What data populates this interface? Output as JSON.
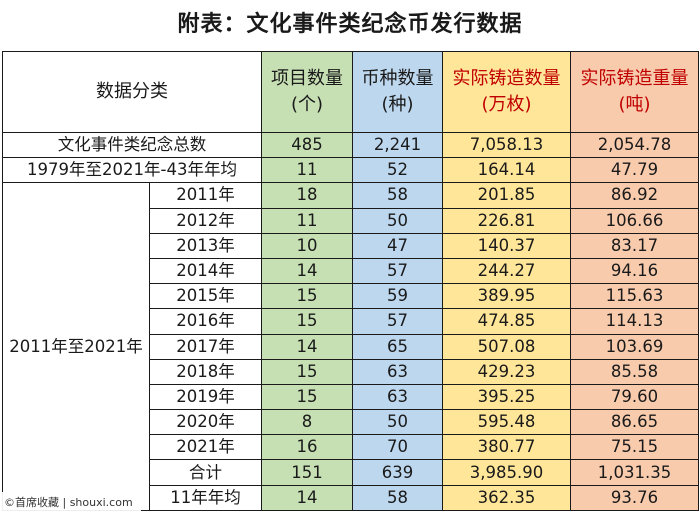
{
  "title": "附表：文化事件类纪念币发行数据",
  "header": {
    "category": "数据分类",
    "items_line1": "项目数量",
    "items_line2": "(个)",
    "types_line1": "币种数量",
    "types_line2": "(种)",
    "mint_count_line1": "实际铸造数量",
    "mint_count_line2": "(万枚)",
    "mint_weight_line1": "实际铸造重量",
    "mint_weight_line2": "(吨)"
  },
  "summary_rows": [
    {
      "label": "文化事件类纪念总数",
      "items": "485",
      "types": "2,241",
      "count": "7,058.13",
      "weight": "2,054.78"
    },
    {
      "label": "1979年至2021年-43年年均",
      "items": "11",
      "types": "52",
      "count": "164.14",
      "weight": "47.79"
    }
  ],
  "group_label": "2011年至2021年",
  "year_rows": [
    {
      "label": "2011年",
      "items": "18",
      "types": "58",
      "count": "201.85",
      "weight": "86.92"
    },
    {
      "label": "2012年",
      "items": "11",
      "types": "50",
      "count": "226.81",
      "weight": "106.66"
    },
    {
      "label": "2013年",
      "items": "10",
      "types": "47",
      "count": "140.37",
      "weight": "83.17"
    },
    {
      "label": "2014年",
      "items": "14",
      "types": "57",
      "count": "244.27",
      "weight": "94.16"
    },
    {
      "label": "2015年",
      "items": "15",
      "types": "59",
      "count": "389.95",
      "weight": "115.63"
    },
    {
      "label": "2016年",
      "items": "15",
      "types": "57",
      "count": "474.85",
      "weight": "114.13"
    },
    {
      "label": "2017年",
      "items": "14",
      "types": "65",
      "count": "507.08",
      "weight": "103.69"
    },
    {
      "label": "2018年",
      "items": "15",
      "types": "63",
      "count": "429.23",
      "weight": "85.58"
    },
    {
      "label": "2019年",
      "items": "15",
      "types": "63",
      "count": "395.25",
      "weight": "79.60"
    },
    {
      "label": "2020年",
      "items": "8",
      "types": "50",
      "count": "595.48",
      "weight": "86.65"
    },
    {
      "label": "2021年",
      "items": "16",
      "types": "70",
      "count": "380.77",
      "weight": "75.15"
    },
    {
      "label": "合计",
      "items": "151",
      "types": "639",
      "count": "3,985.90",
      "weight": "1,031.35"
    },
    {
      "label": "11年年均",
      "items": "14",
      "types": "58",
      "count": "362.35",
      "weight": "93.76"
    }
  ],
  "watermark": "©首席收藏 | shouxi.com",
  "colors": {
    "items": "#c6e0b4",
    "types": "#bdd7ee",
    "mint_count": "#ffe699",
    "mint_weight": "#f8cbad",
    "header_red": "#c00000"
  }
}
